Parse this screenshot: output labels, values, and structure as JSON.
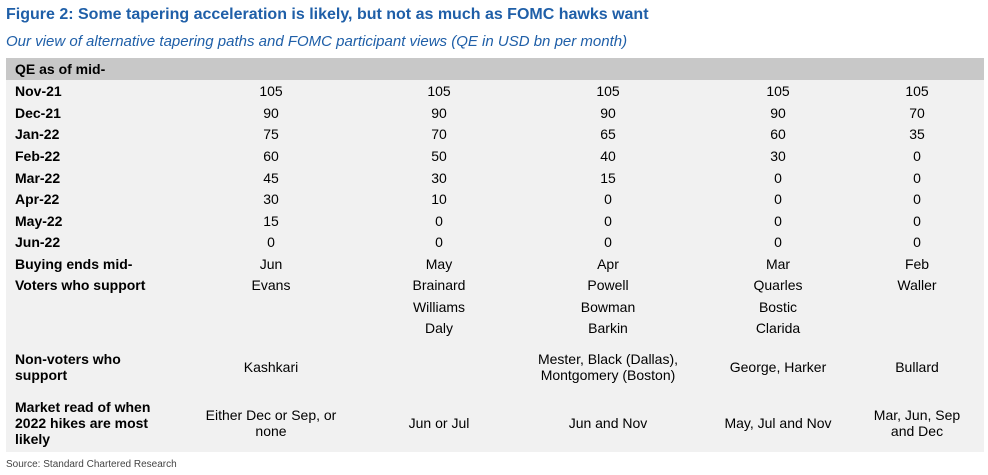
{
  "title": "Figure 2: Some tapering acceleration is likely, but not as much as FOMC hawks want",
  "subtitle": "Our view of alternative tapering paths and  FOMC participant views (QE in USD bn per month)",
  "table": {
    "header_label": "QE as of mid-",
    "rows": [
      {
        "label": "Nov-21",
        "cells": [
          "105",
          "105",
          "105",
          "105",
          "105"
        ]
      },
      {
        "label": "Dec-21",
        "cells": [
          "90",
          "90",
          "90",
          "90",
          "70"
        ]
      },
      {
        "label": "Jan-22",
        "cells": [
          "75",
          "70",
          "65",
          "60",
          "35"
        ]
      },
      {
        "label": "Feb-22",
        "cells": [
          "60",
          "50",
          "40",
          "30",
          "0"
        ]
      },
      {
        "label": "Mar-22",
        "cells": [
          "45",
          "30",
          "15",
          "0",
          "0"
        ]
      },
      {
        "label": "Apr-22",
        "cells": [
          "30",
          "10",
          "0",
          "0",
          "0"
        ]
      },
      {
        "label": "May-22",
        "cells": [
          "15",
          "0",
          "0",
          "0",
          "0"
        ]
      },
      {
        "label": "Jun-22",
        "cells": [
          "0",
          "0",
          "0",
          "0",
          "0"
        ]
      },
      {
        "label": "Buying ends mid-",
        "cells": [
          "Jun",
          "May",
          "Apr",
          "Mar",
          "Feb"
        ]
      },
      {
        "label": "Voters who support",
        "cells": [
          "Evans",
          "Brainard",
          "Powell",
          "Quarles",
          "Waller"
        ]
      },
      {
        "label": "",
        "cells": [
          "",
          "Williams",
          "Bowman",
          "Bostic",
          ""
        ]
      },
      {
        "label": "",
        "cells": [
          "",
          "Daly",
          "Barkin",
          "Clarida",
          ""
        ]
      },
      {
        "label": "Non-voters who support",
        "cells": [
          "Kashkari",
          "",
          "Mester, Black (Dallas), Montgomery (Boston)",
          "George, Harker",
          "Bullard"
        ]
      },
      {
        "label": "Market read of when 2022 hikes are most likely",
        "cells": [
          "Either Dec or Sep, or none",
          "Jun or Jul",
          "Jun and Nov",
          "May, Jul and Nov",
          "Mar, Jun, Sep and Dec"
        ]
      }
    ]
  },
  "source": "Source: Standard Chartered Research"
}
